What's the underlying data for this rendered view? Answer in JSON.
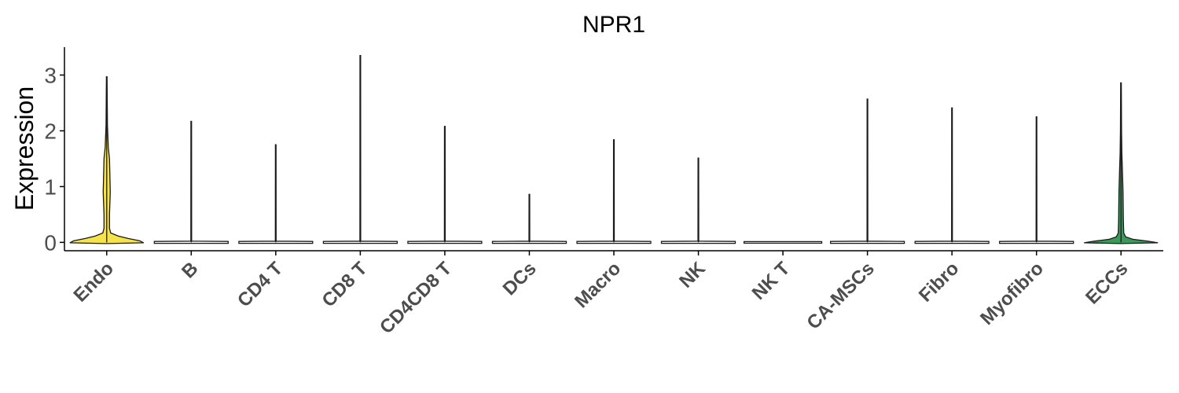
{
  "chart_data": {
    "type": "violin",
    "title": "NPR1",
    "xlabel": "",
    "ylabel": "Expression",
    "ylim": [
      -0.15,
      3.5
    ],
    "yticks": [
      0,
      1,
      2,
      3
    ],
    "categories": [
      "Endo",
      "B",
      "CD4 T",
      "CD8 T",
      "CD4CD8 T",
      "DCs",
      "Macro",
      "NK",
      "NK T",
      "CA-MSCs",
      "Fibro",
      "Myofibro",
      "ECCs"
    ],
    "max_values": [
      2.97,
      2.17,
      1.75,
      3.35,
      2.08,
      0.86,
      1.84,
      1.51,
      0,
      2.57,
      2.41,
      2.25,
      2.86
    ],
    "fill_colors": {
      "Endo": "#f5e34a",
      "ECCs": "#3a9a5b",
      "default": "#ffffff"
    },
    "grid": false,
    "legend": "none"
  }
}
